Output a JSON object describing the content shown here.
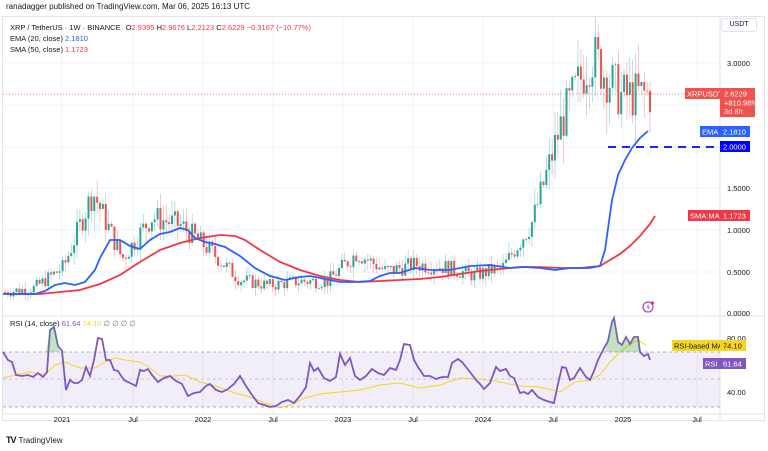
{
  "header": {
    "publisher": "ranadagger published on TradingView.com, Mar 06, 2025 16:13 UTC"
  },
  "legend": {
    "symbol": "XRP / TetherUS · 1W · BINANCE",
    "open_label": "O",
    "open": "2.9395",
    "high_label": "H",
    "high": "2.9676",
    "low_label": "L",
    "low": "2.2123",
    "close_label": "C",
    "close": "2.6229",
    "change": "−0.3167 (−10.77%)",
    "ema_label": "EMA (20, close)",
    "ema_value": "2.1810",
    "sma_label": "SMA (50, close)",
    "sma_value": "1.1723",
    "rsi_label": "RSI (14, close)",
    "rsi_value": "61.64",
    "rsi_ma_value": "74.10",
    "rsi_extra": "∅ ∅ ∅ ∅"
  },
  "price_axis": {
    "currency": "USDT",
    "ticks": [
      "3.0000",
      "1.5000",
      "1.0000",
      "0.5000",
      "0.0000"
    ]
  },
  "rsi_axis": {
    "ticks": [
      "80.00",
      "40.00"
    ]
  },
  "tags": {
    "symbol_tag": "XRPUSDT",
    "price": "2.6229",
    "pct": "+810.98%",
    "countdown": "3d 8h",
    "ema_tag": "EMA",
    "ema_value": "2.1810",
    "level_value": "2.0000",
    "sma_tag": "SMA:MA",
    "sma_value": "1.1723",
    "rsi_ma_tag": "RSI-based MA",
    "rsi_ma_value": "74.10",
    "rsi_tag": "RSI",
    "rsi_value": "61.64"
  },
  "time_axis": [
    "2021",
    "Jul",
    "2022",
    "Jul",
    "2023",
    "Jul",
    "2024",
    "Jul",
    "2025",
    "Jul"
  ],
  "footer": {
    "brand": "TradingView",
    "logo": "TV"
  },
  "colors": {
    "up": "#26a69a",
    "down": "#ef5350",
    "ema": "#2962ff",
    "sma": "#f23645",
    "rsi": "#7e57c2",
    "rsi_ma": "#f7d51d",
    "level": "#0000ff",
    "grid": "#f0f3fa"
  },
  "chart_data": [
    {
      "type": "candlestick",
      "title": "XRP / TetherUS · 1W · BINANCE",
      "ylabel": "USDT",
      "ylim": [
        0,
        3.4
      ],
      "x_ticks": [
        "2021",
        "Jul",
        "2022",
        "Jul",
        "2023",
        "Jul",
        "2024",
        "Jul",
        "2025",
        "Jul"
      ],
      "y_ticks": [
        0.0,
        0.5,
        1.0,
        1.5,
        3.0
      ],
      "last_ohlc": {
        "open": 2.9395,
        "high": 2.9676,
        "low": 2.2123,
        "close": 2.6229,
        "change": -0.3167,
        "change_pct": -10.77
      },
      "horizontal_level": 2.0,
      "approx_close_series": {
        "x": [
          "2020-11",
          "2021-01",
          "2021-04",
          "2021-05",
          "2021-07",
          "2021-09",
          "2021-11",
          "2022-01",
          "2022-05",
          "2022-07",
          "2022-11",
          "2023-01",
          "2023-07",
          "2023-10",
          "2024-01",
          "2024-04",
          "2024-07",
          "2024-10",
          "2024-11",
          "2024-12",
          "2025-01",
          "2025-02",
          "2025-03"
        ],
        "y": [
          0.25,
          0.3,
          0.55,
          1.45,
          0.65,
          1.15,
          1.05,
          0.75,
          0.4,
          0.33,
          0.38,
          0.38,
          0.72,
          0.5,
          0.58,
          0.55,
          0.45,
          0.55,
          1.1,
          2.3,
          3.1,
          2.6,
          2.62
        ]
      },
      "series": [
        {
          "name": "EMA (20, close)",
          "last": 2.181,
          "color": "#2962ff"
        },
        {
          "name": "SMA (50, close)",
          "last": 1.1723,
          "color": "#f23645"
        }
      ]
    },
    {
      "type": "line",
      "title": "RSI (14, close)",
      "ylim": [
        25,
        100
      ],
      "y_ticks": [
        40,
        80
      ],
      "bands": {
        "upper": 70,
        "middle": 50,
        "lower": 30
      },
      "series": [
        {
          "name": "RSI",
          "last": 61.64,
          "color": "#7e57c2"
        },
        {
          "name": "RSI-based MA",
          "last": 74.1,
          "color": "#f7d51d"
        }
      ]
    }
  ]
}
